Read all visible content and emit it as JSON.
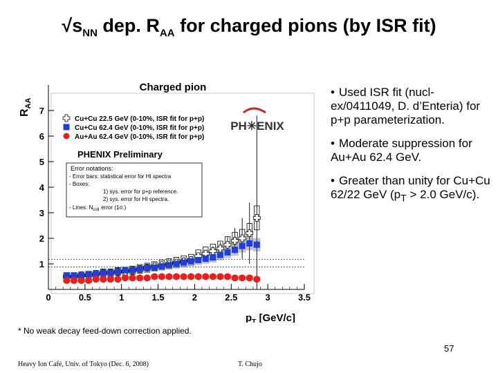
{
  "slide": {
    "title_main": "√s",
    "title_sub": "NN",
    "title_mid": " dep. R",
    "title_sub2": "AA",
    "title_end": " for charged pions (by ISR fit)",
    "bullets": [
      {
        "text": "Used ISR fit (nucl-ex/0411049, D. d’Enteria) for p+p parameterization."
      },
      {
        "text": "Moderate suppression for Au+Au 62.4 GeV."
      },
      {
        "text_pre": "Greater than unity for Cu+Cu 62/22 GeV (p",
        "text_sub": "T",
        "text_post": " > 2.0 GeV/c)."
      }
    ],
    "footnote": "* No weak decay feed-down correction applied.",
    "page_number": "57",
    "footer_left": "Heavy Ion Café, Univ. of Tokyo (Dec. 6, 2008)",
    "footer_right": "T. Chujo"
  },
  "chart_data": {
    "type": "scatter",
    "title": "Charged pion",
    "xlabel": "p",
    "xlabel_sub": "T",
    "xlabel_unit": " [GeV/c]",
    "ylabel": "R",
    "ylabel_sub": "AA",
    "xlim": [
      0,
      3.5
    ],
    "ylim": [
      0,
      8
    ],
    "xticks": [
      "0",
      "0.5",
      "1",
      "1.5",
      "2",
      "2.5",
      "3",
      "3.5"
    ],
    "yticks": [
      "1",
      "2",
      "3",
      "4",
      "5",
      "6",
      "7"
    ],
    "preliminary": "PHENIX Preliminary",
    "logo": "PH✳ENIX",
    "error_note": {
      "heading": "Error notations:",
      "lines": [
        "- Error bars: statistical error for HI spectra",
        "- Boxes:",
        "1) sys. error for p+p reference.",
        "2) sys. error for HI spectra.",
        "- Lines: N",
        "error (1σ.)"
      ],
      "lines_sub": "coll"
    },
    "reference_lines": [
      1.18,
      0.88
    ],
    "series": [
      {
        "name": "Cu+Cu 22.5 GeV (0-10%, ISR fit for p+p)",
        "color": "#000000",
        "marker": "open-cross",
        "x": [
          0.25,
          0.35,
          0.45,
          0.55,
          0.65,
          0.75,
          0.85,
          0.95,
          1.05,
          1.15,
          1.25,
          1.35,
          1.45,
          1.55,
          1.65,
          1.75,
          1.85,
          1.95,
          2.05,
          2.15,
          2.25,
          2.35,
          2.45,
          2.55,
          2.65,
          2.75,
          2.85
        ],
        "values": [
          0.5,
          0.5,
          0.55,
          0.55,
          0.6,
          0.65,
          0.65,
          0.7,
          0.7,
          0.75,
          0.8,
          0.85,
          0.9,
          0.95,
          1.0,
          1.05,
          1.1,
          1.15,
          1.3,
          1.4,
          1.5,
          1.6,
          1.75,
          1.9,
          2.0,
          2.2,
          2.8
        ],
        "err": [
          0.05,
          0.05,
          0.05,
          0.05,
          0.05,
          0.05,
          0.05,
          0.05,
          0.05,
          0.06,
          0.06,
          0.06,
          0.07,
          0.07,
          0.08,
          0.08,
          0.1,
          0.1,
          0.12,
          0.15,
          0.2,
          0.25,
          0.3,
          0.5,
          0.8,
          1.2,
          4.0
        ]
      },
      {
        "name": "Cu+Cu 62.4 GeV (0-10%, ISR fit for p+p)",
        "color": "#1f3fd6",
        "marker": "square",
        "x": [
          0.25,
          0.35,
          0.45,
          0.55,
          0.65,
          0.75,
          0.85,
          0.95,
          1.05,
          1.15,
          1.25,
          1.35,
          1.45,
          1.55,
          1.65,
          1.75,
          1.85,
          1.95,
          2.05,
          2.15,
          2.25,
          2.35,
          2.45,
          2.55,
          2.65,
          2.75,
          2.85
        ],
        "values": [
          0.55,
          0.55,
          0.55,
          0.6,
          0.6,
          0.65,
          0.65,
          0.7,
          0.75,
          0.75,
          0.8,
          0.85,
          0.85,
          0.9,
          0.95,
          1.0,
          1.05,
          1.1,
          1.15,
          1.2,
          1.25,
          1.35,
          1.45,
          1.55,
          1.7,
          1.8,
          1.75
        ],
        "err": [
          0.04,
          0.04,
          0.04,
          0.04,
          0.04,
          0.04,
          0.04,
          0.04,
          0.04,
          0.05,
          0.05,
          0.05,
          0.05,
          0.05,
          0.06,
          0.06,
          0.06,
          0.07,
          0.07,
          0.08,
          0.08,
          0.09,
          0.1,
          0.12,
          0.15,
          0.2,
          0.25
        ]
      },
      {
        "name": "Au+Au 62.4 GeV (0-10%, ISR fit for p+p)",
        "color": "#e8201c",
        "marker": "circle",
        "x": [
          0.25,
          0.35,
          0.45,
          0.55,
          0.65,
          0.75,
          0.85,
          0.95,
          1.05,
          1.15,
          1.25,
          1.35,
          1.45,
          1.55,
          1.65,
          1.75,
          1.85,
          1.95,
          2.05,
          2.15,
          2.25,
          2.35,
          2.45,
          2.55,
          2.65,
          2.75,
          2.85
        ],
        "values": [
          0.35,
          0.35,
          0.35,
          0.35,
          0.4,
          0.4,
          0.4,
          0.4,
          0.45,
          0.45,
          0.45,
          0.45,
          0.5,
          0.5,
          0.5,
          0.5,
          0.5,
          0.5,
          0.5,
          0.5,
          0.5,
          0.5,
          0.5,
          0.45,
          0.45,
          0.45,
          0.4
        ],
        "err": [
          0.03,
          0.03,
          0.03,
          0.03,
          0.03,
          0.03,
          0.03,
          0.03,
          0.03,
          0.03,
          0.03,
          0.03,
          0.03,
          0.03,
          0.03,
          0.03,
          0.03,
          0.03,
          0.04,
          0.04,
          0.04,
          0.04,
          0.05,
          0.05,
          0.05,
          0.06,
          0.07
        ]
      }
    ]
  }
}
